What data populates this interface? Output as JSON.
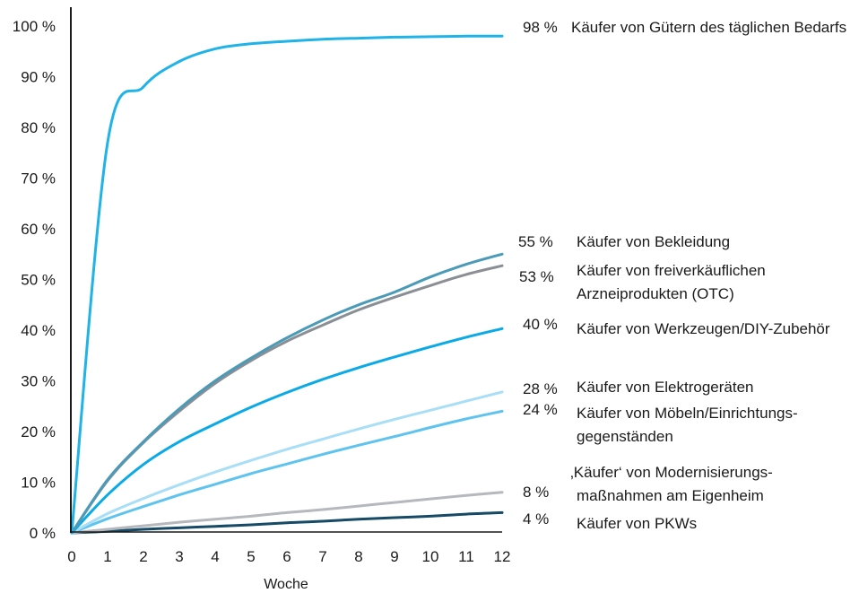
{
  "chart_data": {
    "type": "line",
    "xlabel": "Woche",
    "ylabel": "",
    "xlim": [
      0,
      12
    ],
    "ylim": [
      0,
      100
    ],
    "x_ticks": [
      "0",
      "1",
      "2",
      "3",
      "4",
      "5",
      "6",
      "7",
      "8",
      "9",
      "10",
      "11",
      "12"
    ],
    "y_ticks": [
      "0 %",
      "10 %",
      "20 %",
      "30 %",
      "40 %",
      "50 %",
      "60 %",
      "70 %",
      "80 %",
      "90 %",
      "100 %"
    ],
    "grid": false,
    "legend": "inline-right",
    "x": [
      0,
      1,
      2,
      3,
      4,
      5,
      6,
      7,
      8,
      9,
      10,
      11,
      12
    ],
    "series": [
      {
        "name": "Käufer von Gütern des täglichen Bedarfs",
        "end_label": "98 %",
        "color": "#1fb3e8",
        "values": [
          0,
          77,
          88,
          93,
          95.5,
          96.5,
          97,
          97.4,
          97.6,
          97.8,
          97.9,
          98,
          98
        ]
      },
      {
        "name": "Käufer von Bekleidung",
        "end_label": "55 %",
        "color": "#4a9ab8",
        "values": [
          0,
          10.5,
          18,
          24.5,
          30,
          34.5,
          38.5,
          42,
          45,
          47.5,
          50.5,
          53,
          55
        ]
      },
      {
        "name": "Käufer von freiverkäuflichen Arzneiprodukten (OTC)",
        "end_label": "53 %",
        "color": "#8a8f95",
        "values": [
          0,
          10.3,
          17.8,
          24,
          29.5,
          34,
          37.8,
          41,
          44,
          46.5,
          48.8,
          51,
          52.7
        ]
      },
      {
        "name": "Käufer von Werkzeugen/DIY-Zubehör",
        "end_label": "40 %",
        "color": "#0aaae6",
        "values": [
          0,
          7.5,
          13.5,
          18,
          21.5,
          24.8,
          27.7,
          30.3,
          32.6,
          34.7,
          36.7,
          38.6,
          40.3
        ]
      },
      {
        "name": "Käufer von Elektrogeräten",
        "end_label": "28 %",
        "color": "#a8def6",
        "values": [
          0,
          3.8,
          6.8,
          9.5,
          12,
          14.3,
          16.5,
          18.5,
          20.5,
          22.4,
          24.2,
          26,
          27.8
        ]
      },
      {
        "name": "Käufer von Möbeln/Einrichtungs-gegenständen",
        "end_label": "24 %",
        "color": "#5ec3ee",
        "values": [
          0,
          2.8,
          5.2,
          7.5,
          9.6,
          11.7,
          13.6,
          15.5,
          17.3,
          19,
          20.8,
          22.5,
          24
        ]
      },
      {
        "name": "‚Käufer‘ von Modernisierungs-maßnahmen am Eigenheim",
        "end_label": "8 %",
        "color": "#b5b8bc",
        "values": [
          0,
          0.7,
          1.4,
          2.1,
          2.7,
          3.3,
          4,
          4.6,
          5.3,
          6,
          6.7,
          7.4,
          8
        ]
      },
      {
        "name": "Käufer von PKWs",
        "end_label": "4 %",
        "color": "#164a66",
        "values": [
          0,
          0.3,
          0.7,
          1,
          1.3,
          1.6,
          2,
          2.3,
          2.7,
          3,
          3.3,
          3.7,
          4
        ]
      }
    ]
  },
  "labels": {
    "s0_value": "98 %",
    "s0_text": "Käufer von Gütern des täglichen Bedarfs",
    "s1_value": "55 %",
    "s1_text": "Käufer von Bekleidung",
    "s2_value": "53 %",
    "s2_line1": "Käufer von freiverkäuflichen",
    "s2_line2": "Arzneiprodukten (OTC)",
    "s3_value": "40 %",
    "s3_text": "Käufer von Werkzeugen/DIY-Zubehör",
    "s4_value": "28 %",
    "s4_text": "Käufer von Elektrogeräten",
    "s5_value": "24 %",
    "s5_line1": "Käufer von Möbeln/Einrichtungs-",
    "s5_line2": "gegenständen",
    "s6_value": "8 %",
    "s6_line1": "‚Käufer‘ von Modernisierungs-",
    "s6_line2": "maßnahmen am Eigenheim",
    "s7_value": "4 %",
    "s7_text": "Käufer von PKWs"
  }
}
